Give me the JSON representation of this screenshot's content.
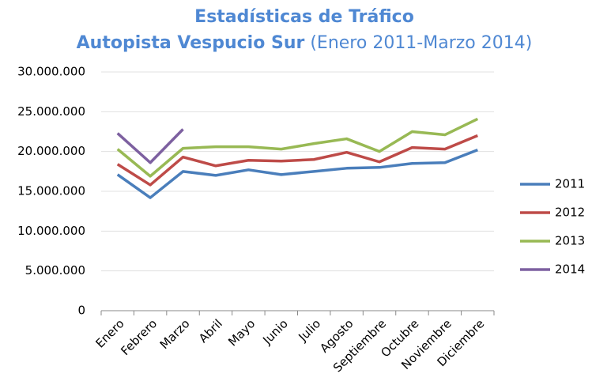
{
  "chart_data": {
    "type": "line",
    "title": "Estadísticas de Tráfico",
    "subtitle": "Autopista Vespucio Sur",
    "subtitle_note": "(Enero 2011-Marzo 2014)",
    "categories": [
      "Enero",
      "Febrero",
      "Marzo",
      "Abril",
      "Mayo",
      "Junio",
      "Julio",
      "Agosto",
      "Septiembre",
      "Octubre",
      "Noviembre",
      "Diciembre"
    ],
    "series": [
      {
        "name": "2011",
        "color": "#4a7ebb",
        "values": [
          17100000,
          14200000,
          17500000,
          17000000,
          17700000,
          17100000,
          17500000,
          17900000,
          18000000,
          18500000,
          18600000,
          20200000
        ]
      },
      {
        "name": "2012",
        "color": "#be4b48",
        "values": [
          18400000,
          15800000,
          19300000,
          18200000,
          18900000,
          18800000,
          19000000,
          19900000,
          18700000,
          20500000,
          20300000,
          22000000
        ]
      },
      {
        "name": "2013",
        "color": "#98b954",
        "values": [
          20300000,
          16900000,
          20400000,
          20600000,
          20600000,
          20300000,
          21000000,
          21600000,
          20000000,
          22500000,
          22100000,
          24100000
        ]
      },
      {
        "name": "2014",
        "color": "#7d60a0",
        "values": [
          22300000,
          18600000,
          22800000,
          null,
          null,
          null,
          null,
          null,
          null,
          null,
          null,
          null
        ]
      }
    ],
    "ylim": [
      0,
      30000000
    ],
    "yticks": [
      0,
      {
        "value": 5000000,
        "label": "5.000.000"
      },
      {
        "value": 10000000,
        "label": "10.000.000"
      },
      {
        "value": 15000000,
        "label": "15.000.000"
      },
      {
        "value": 20000000,
        "label": "20.000.000"
      },
      {
        "value": 25000000,
        "label": "25.000.000"
      },
      {
        "value": 30000000,
        "label": "30.000.000"
      }
    ],
    "grid": true,
    "legend": "right"
  }
}
